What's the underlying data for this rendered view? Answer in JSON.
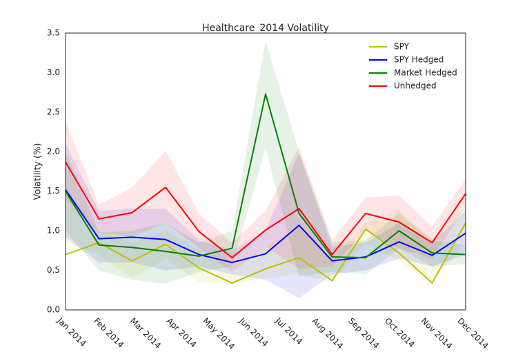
{
  "chart_data": {
    "type": "line",
    "title": "Healthcare_2014 Volatility",
    "y_label": "Volatility (%)",
    "xticks": [
      {
        "value": 0,
        "label": "Jan 2014"
      },
      {
        "value": 1,
        "label": "Feb 2014"
      },
      {
        "value": 2,
        "label": "Mar 2014"
      },
      {
        "value": 3,
        "label": "Apr 2014"
      },
      {
        "value": 4,
        "label": "May 2014"
      },
      {
        "value": 5,
        "label": "Jun 2014"
      },
      {
        "value": 6,
        "label": "Jul 2014"
      },
      {
        "value": 7,
        "label": "Aug 2014"
      },
      {
        "value": 8,
        "label": "Sep 2014"
      },
      {
        "value": 9,
        "label": "Oct 2014"
      },
      {
        "value": 10,
        "label": "Nov 2014"
      },
      {
        "value": 11,
        "label": "Dec 2014"
      }
    ],
    "xlim": [
      0,
      11
    ],
    "x": [
      0,
      0.92,
      1.83,
      2.75,
      3.67,
      4.58,
      5.5,
      6.42,
      7.33,
      8.25,
      9.17,
      10.08,
      11
    ],
    "ylim": [
      0,
      3.5
    ],
    "yticks": [
      {
        "value": 0,
        "label": "0.0"
      },
      0.5,
      {
        "value": 1,
        "label": "1.0"
      },
      1.5,
      {
        "value": 2,
        "label": "2.0"
      },
      2.5,
      {
        "value": 3,
        "label": "3.0"
      },
      3.5
    ],
    "grid": false,
    "legend": "upper right",
    "series": [
      {
        "name": "SPY",
        "color": "#bfbf00",
        "values": [
          0.7,
          0.85,
          0.62,
          0.83,
          0.53,
          0.34,
          0.52,
          0.66,
          0.37,
          1.02,
          0.72,
          0.34,
          1.1
        ],
        "upper": [
          1.52,
          1.0,
          0.85,
          1.0,
          0.75,
          0.55,
          0.8,
          1.05,
          0.6,
          1.1,
          1.25,
          0.9,
          1.3
        ],
        "lower": [
          0.85,
          0.7,
          0.4,
          0.65,
          0.35,
          0.33,
          0.4,
          0.45,
          0.35,
          0.85,
          0.62,
          0.35,
          0.85
        ]
      },
      {
        "name": "SPY Hedged",
        "color": "#0000ff",
        "values": [
          1.52,
          0.9,
          0.92,
          0.89,
          0.7,
          0.6,
          0.71,
          1.07,
          0.62,
          0.67,
          0.86,
          0.69,
          0.97
        ],
        "upper": [
          2.1,
          1.25,
          1.28,
          1.28,
          0.88,
          0.75,
          1.0,
          1.98,
          0.8,
          0.85,
          1.1,
          0.85,
          1.25
        ],
        "lower": [
          0.92,
          0.6,
          0.6,
          0.5,
          0.55,
          0.45,
          0.38,
          0.15,
          0.45,
          0.5,
          0.65,
          0.55,
          0.7
        ]
      },
      {
        "name": "Market Hedged",
        "color": "#008000",
        "values": [
          1.5,
          0.82,
          0.79,
          0.74,
          0.68,
          0.78,
          2.73,
          1.22,
          0.67,
          0.66,
          1.0,
          0.72,
          0.7
        ],
        "upper": [
          2.0,
          0.98,
          1.0,
          1.1,
          0.85,
          1.0,
          3.4,
          2.0,
          0.85,
          0.88,
          1.22,
          0.88,
          0.82
        ],
        "lower": [
          1.0,
          0.5,
          0.38,
          0.33,
          0.48,
          0.55,
          2.05,
          0.42,
          0.48,
          0.45,
          0.78,
          0.55,
          0.58
        ]
      },
      {
        "name": "Unhedged",
        "color": "#ff0000",
        "values": [
          1.87,
          1.15,
          1.23,
          1.55,
          0.99,
          0.66,
          1.01,
          1.28,
          0.7,
          1.22,
          1.11,
          0.85,
          1.47
        ],
        "upper": [
          2.38,
          1.33,
          1.55,
          2.01,
          1.22,
          0.85,
          1.25,
          2.06,
          0.88,
          1.42,
          1.45,
          1.06,
          1.65
        ],
        "lower": [
          1.4,
          0.98,
          0.92,
          1.1,
          0.78,
          0.48,
          0.8,
          0.52,
          0.55,
          1.0,
          0.78,
          0.65,
          1.3
        ]
      }
    ]
  }
}
